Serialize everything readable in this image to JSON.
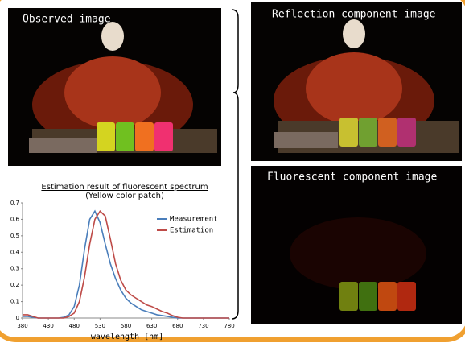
{
  "images": [
    {
      "label": "Observed image"
    },
    {
      "label": "Reflection component image"
    },
    {
      "label": "Fluorescent component image"
    }
  ],
  "chart_data": {
    "type": "line",
    "title": "Estimation result of fluorescent spectrum",
    "subtitle": "(Yellow color patch)",
    "xlabel": "wavelength [nm]",
    "x": [
      380,
      390,
      400,
      410,
      420,
      430,
      440,
      450,
      460,
      470,
      480,
      490,
      500,
      510,
      520,
      530,
      540,
      550,
      560,
      570,
      580,
      590,
      600,
      610,
      620,
      630,
      640,
      650,
      660,
      670,
      680,
      690,
      700,
      710,
      720,
      730,
      740,
      750,
      760,
      770,
      780
    ],
    "xlim": [
      380,
      780
    ],
    "xticks": [
      380,
      430,
      480,
      530,
      580,
      630,
      680,
      730,
      780
    ],
    "ylim": [
      0,
      0.7
    ],
    "yticks": [
      0,
      0.1,
      0.2,
      0.3,
      0.4,
      0.5,
      0.6,
      0.7
    ],
    "legend": "upper right",
    "series": [
      {
        "name": "Measurement",
        "color": "#4a7ebb",
        "values": [
          0.01,
          0.01,
          0.005,
          0,
          0,
          0,
          0,
          0,
          0.005,
          0.02,
          0.07,
          0.2,
          0.42,
          0.6,
          0.65,
          0.58,
          0.45,
          0.33,
          0.24,
          0.17,
          0.12,
          0.09,
          0.07,
          0.05,
          0.04,
          0.03,
          0.02,
          0.015,
          0.01,
          0.005,
          0,
          0,
          0,
          0,
          0,
          0,
          0,
          0,
          0,
          0,
          0
        ]
      },
      {
        "name": "Estimation",
        "color": "#be4b48",
        "values": [
          0.02,
          0.02,
          0.01,
          0,
          0,
          0,
          0,
          0,
          0,
          0.01,
          0.03,
          0.1,
          0.25,
          0.45,
          0.6,
          0.65,
          0.62,
          0.48,
          0.33,
          0.23,
          0.17,
          0.14,
          0.12,
          0.1,
          0.08,
          0.07,
          0.055,
          0.04,
          0.03,
          0.015,
          0.005,
          0,
          0,
          0,
          0,
          0,
          0,
          0,
          0,
          0,
          0
        ]
      }
    ]
  }
}
